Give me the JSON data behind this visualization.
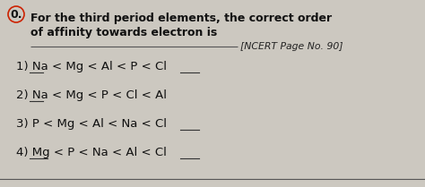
{
  "background_color": "#ccc8c0",
  "question_line1": "For the third period elements, the correct order",
  "question_line2": "of affinity towards electron is",
  "ncert_ref": "[NCERT Page No. 90]",
  "options": [
    "1) Na < Mg < Al < P < Cl",
    "2) Na < Mg < P < Cl < Al",
    "3) P < Mg < Al < Na < Cl",
    "4) Mg < P < Na < Al < Cl"
  ],
  "title_fontsize": 9.0,
  "option_fontsize": 9.5,
  "ncert_fontsize": 7.8,
  "text_color": "#111111",
  "ncert_color": "#222222",
  "circle_color": "#cc2200",
  "qnum_fontsize": 9.0
}
